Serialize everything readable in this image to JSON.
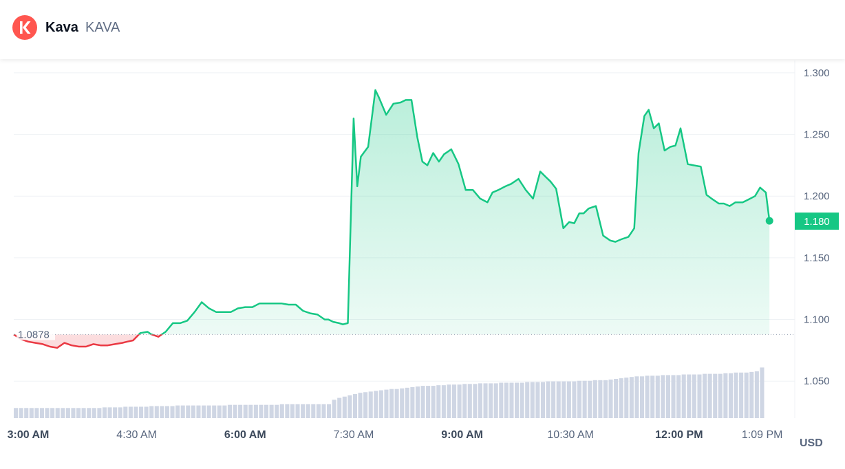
{
  "header": {
    "name": "Kava",
    "symbol": "KAVA",
    "logo_icon": "kava-logo-icon"
  },
  "chart_data": {
    "type": "line",
    "xlabel": "",
    "ylabel": "",
    "currency": "USD",
    "ylim": [
      1.02,
      1.31
    ],
    "y_ticks": [
      1.3,
      1.25,
      1.2,
      1.15,
      1.1,
      1.05
    ],
    "y_tick_labels": [
      "1.300",
      "1.250",
      "1.200",
      "1.150",
      "1.100",
      "1.050"
    ],
    "x_ticks": [
      {
        "label": "3:00 AM",
        "t": 3.0,
        "bold": true
      },
      {
        "label": "4:30 AM",
        "t": 4.5,
        "bold": false
      },
      {
        "label": "6:00 AM",
        "t": 6.0,
        "bold": true
      },
      {
        "label": "7:30 AM",
        "t": 7.5,
        "bold": false
      },
      {
        "label": "9:00 AM",
        "t": 9.0,
        "bold": true
      },
      {
        "label": "10:30 AM",
        "t": 10.5,
        "bold": false
      },
      {
        "label": "12:00 PM",
        "t": 12.0,
        "bold": true
      },
      {
        "label": "1:09 PM",
        "t": 13.15,
        "bold": false
      }
    ],
    "x_range": [
      2.8,
      13.6
    ],
    "base_price": 1.0878,
    "base_price_label": "1.0878",
    "last_price": 1.18,
    "last_price_label": "1.180",
    "up_color": "#16C784",
    "down_color": "#EA3943",
    "volume_color": "#CFD6E4",
    "series": [
      {
        "x": [
          2.8,
          2.9,
          3.0,
          3.1,
          3.2,
          3.3,
          3.4,
          3.5,
          3.6,
          3.7,
          3.8,
          3.9,
          4.0,
          4.1,
          4.2,
          4.3,
          4.37,
          4.45,
          4.55,
          4.65,
          4.7,
          4.8,
          4.9,
          5.0,
          5.1,
          5.2,
          5.3,
          5.4,
          5.5,
          5.6,
          5.7,
          5.8,
          5.9,
          6.0,
          6.1,
          6.2,
          6.3,
          6.4,
          6.5,
          6.6,
          6.7,
          6.8,
          6.9,
          7.0,
          7.05,
          7.1,
          7.15,
          7.22,
          7.3,
          7.35,
          7.42,
          7.5,
          7.55,
          7.6,
          7.7,
          7.8,
          7.85,
          7.95,
          8.05,
          8.15,
          8.22,
          8.3,
          8.38,
          8.45,
          8.52,
          8.6,
          8.68,
          8.75,
          8.85,
          8.95,
          9.05,
          9.15,
          9.25,
          9.35,
          9.42,
          9.5,
          9.6,
          9.68,
          9.78,
          9.88,
          9.98,
          10.08,
          10.15,
          10.22,
          10.3,
          10.4,
          10.48,
          10.55,
          10.62,
          10.68,
          10.75,
          10.85,
          10.95,
          11.05,
          11.12,
          11.2,
          11.3,
          11.38,
          11.44,
          11.52,
          11.58,
          11.65,
          11.72,
          11.8,
          11.88,
          11.95,
          12.02,
          12.12,
          12.2,
          12.3,
          12.38,
          12.45,
          12.55,
          12.62,
          12.7,
          12.78,
          12.88,
          12.95,
          13.05,
          13.12,
          13.2
        ],
        "y": [
          1.0878,
          1.084,
          1.082,
          1.081,
          1.08,
          1.078,
          1.077,
          1.081,
          1.079,
          1.078,
          1.078,
          1.08,
          1.079,
          1.079,
          1.08,
          1.081,
          1.082,
          1.083,
          1.089,
          1.09,
          1.088,
          1.086,
          1.09,
          1.097,
          1.097,
          1.099,
          1.106,
          1.114,
          1.109,
          1.106,
          1.106,
          1.106,
          1.109,
          1.11,
          1.11,
          1.113,
          1.113,
          1.113,
          1.113,
          1.112,
          1.112,
          1.107,
          1.105,
          1.104,
          1.102,
          1.1,
          1.1,
          1.098,
          1.097,
          1.096,
          1.097,
          1.263,
          1.208,
          1.232,
          1.24,
          1.286,
          1.28,
          1.266,
          1.275,
          1.276,
          1.278,
          1.278,
          1.248,
          1.228,
          1.225,
          1.235,
          1.228,
          1.234,
          1.238,
          1.226,
          1.205,
          1.205,
          1.198,
          1.195,
          1.203,
          1.205,
          1.208,
          1.21,
          1.214,
          1.205,
          1.198,
          1.22,
          1.216,
          1.212,
          1.206,
          1.174,
          1.179,
          1.178,
          1.186,
          1.186,
          1.19,
          1.192,
          1.168,
          1.164,
          1.163,
          1.165,
          1.167,
          1.174,
          1.235,
          1.265,
          1.27,
          1.255,
          1.259,
          1.237,
          1.24,
          1.241,
          1.255,
          1.226,
          1.225,
          1.224,
          1.201,
          1.198,
          1.194,
          1.194,
          1.192,
          1.195,
          1.195,
          1.197,
          1.2,
          1.207,
          1.203
        ],
        "end_x": 13.25,
        "end_y": 1.18
      }
    ],
    "volume": [
      0.16,
      0.16,
      0.16,
      0.16,
      0.16,
      0.16,
      0.16,
      0.16,
      0.16,
      0.16,
      0.16,
      0.16,
      0.16,
      0.16,
      0.16,
      0.16,
      0.16,
      0.17,
      0.17,
      0.17,
      0.17,
      0.18,
      0.18,
      0.18,
      0.18,
      0.18,
      0.19,
      0.19,
      0.19,
      0.19,
      0.19,
      0.2,
      0.2,
      0.2,
      0.2,
      0.2,
      0.2,
      0.2,
      0.2,
      0.2,
      0.2,
      0.21,
      0.21,
      0.21,
      0.21,
      0.21,
      0.21,
      0.21,
      0.21,
      0.21,
      0.21,
      0.22,
      0.22,
      0.22,
      0.22,
      0.22,
      0.22,
      0.22,
      0.22,
      0.22,
      0.22,
      0.29,
      0.32,
      0.34,
      0.36,
      0.38,
      0.4,
      0.41,
      0.42,
      0.43,
      0.44,
      0.45,
      0.46,
      0.46,
      0.47,
      0.48,
      0.49,
      0.5,
      0.51,
      0.51,
      0.51,
      0.52,
      0.52,
      0.53,
      0.53,
      0.53,
      0.54,
      0.54,
      0.54,
      0.55,
      0.55,
      0.55,
      0.55,
      0.56,
      0.56,
      0.56,
      0.56,
      0.56,
      0.57,
      0.57,
      0.57,
      0.57,
      0.58,
      0.58,
      0.58,
      0.58,
      0.58,
      0.58,
      0.59,
      0.59,
      0.59,
      0.6,
      0.6,
      0.6,
      0.61,
      0.62,
      0.63,
      0.64,
      0.65,
      0.66,
      0.66,
      0.67,
      0.67,
      0.67,
      0.68,
      0.68,
      0.68,
      0.68,
      0.69,
      0.69,
      0.69,
      0.69,
      0.7,
      0.7,
      0.7,
      0.7,
      0.71,
      0.71,
      0.72,
      0.72,
      0.72,
      0.73,
      0.74,
      0.8
    ]
  }
}
